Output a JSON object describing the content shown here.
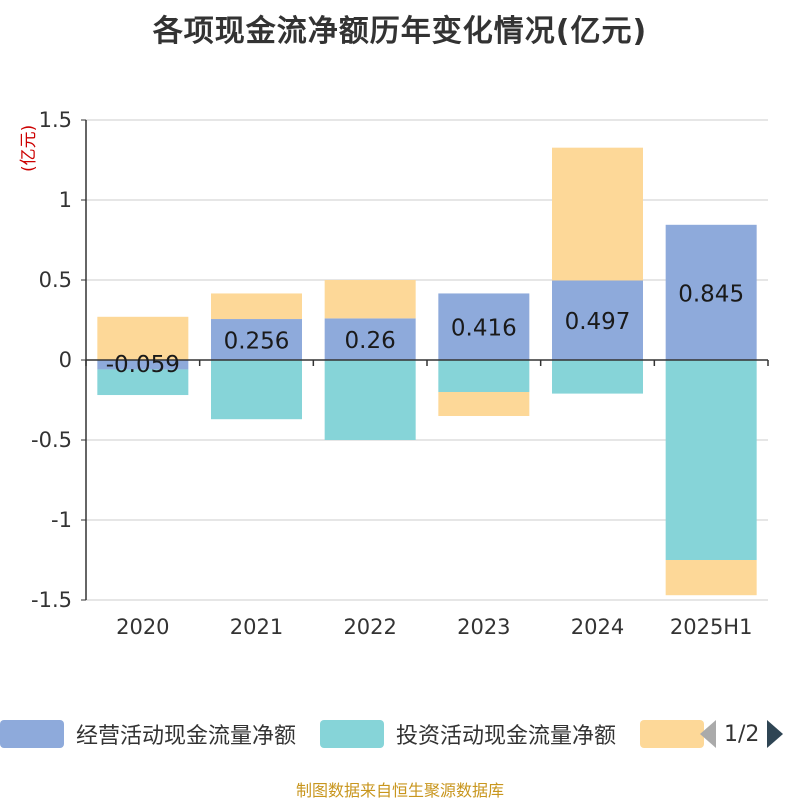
{
  "title": "各项现金流净额历年变化情况(亿元)",
  "y_unit": "(亿元)",
  "source": "制图数据来自恒生聚源数据库",
  "legend": {
    "items": [
      {
        "label": "经营活动现金流量净额",
        "color": "#8eaadb"
      },
      {
        "label": "投资活动现金流量净额",
        "color": "#86d4d8"
      },
      {
        "label": "",
        "color": "#fdd898"
      }
    ],
    "page": "1/2"
  },
  "chart_data": {
    "type": "bar",
    "stacked": true,
    "categories": [
      "2020",
      "2021",
      "2022",
      "2023",
      "2024",
      "2025H1"
    ],
    "series": [
      {
        "name": "经营活动现金流量净额",
        "color": "#8eaadb",
        "values": [
          -0.059,
          0.256,
          0.26,
          0.416,
          0.497,
          0.845
        ],
        "data_labels": true
      },
      {
        "name": "投资活动现金流量净额",
        "color": "#86d4d8",
        "values": [
          -0.16,
          -0.37,
          -0.5,
          -0.2,
          -0.21,
          -1.25
        ]
      },
      {
        "color": "#fdd898",
        "values": [
          0.27,
          0.16,
          0.24,
          -0.15,
          0.83,
          -0.22
        ]
      }
    ],
    "ylim": [
      -1.5,
      1.5
    ],
    "yticks": [
      1.5,
      1,
      0.5,
      0,
      -0.5,
      -1,
      -1.5
    ],
    "ytick_labels": [
      "1.5",
      "1",
      "0.5",
      "0",
      "-0.5",
      "-1",
      "-1.5"
    ],
    "grid": true,
    "legend_position": "bottom"
  }
}
